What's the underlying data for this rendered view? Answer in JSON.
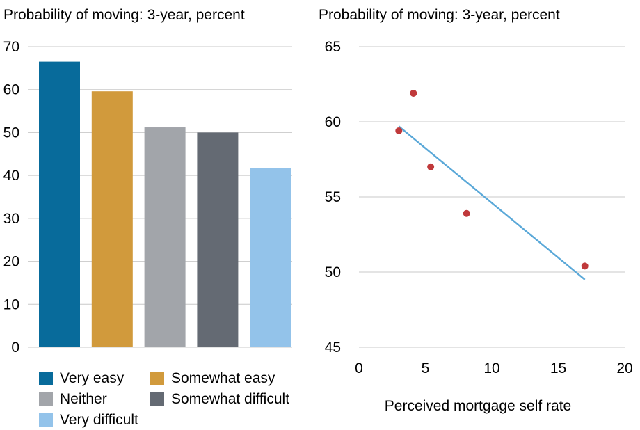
{
  "chart_data": [
    {
      "type": "bar",
      "title": "Probability of moving: 3-year, percent",
      "categories": [
        "Very easy",
        "Somewhat easy",
        "Neither",
        "Somewhat difficult",
        "Very difficult"
      ],
      "values": [
        66.5,
        59.6,
        51.2,
        50.0,
        41.8
      ],
      "colors": [
        "#086b9b",
        "#d19a3c",
        "#a2a5aa",
        "#646a73",
        "#93c3ea"
      ],
      "ylim": [
        0,
        70
      ],
      "yticks": [
        "0",
        "10",
        "20",
        "30",
        "40",
        "50",
        "60",
        "70"
      ],
      "grid": true,
      "legend_position": "bottom"
    },
    {
      "type": "scatter",
      "title": "Probability of moving: 3-year, percent",
      "xlabel": "Perceived mortgage self rate",
      "points": [
        {
          "x": 3.0,
          "y": 59.4
        },
        {
          "x": 4.1,
          "y": 61.9
        },
        {
          "x": 5.4,
          "y": 57.0
        },
        {
          "x": 8.1,
          "y": 53.9
        },
        {
          "x": 17.0,
          "y": 50.4
        }
      ],
      "trendline": {
        "x": [
          3.0,
          17.0
        ],
        "y": [
          59.7,
          49.5
        ]
      },
      "xlim": [
        0,
        20
      ],
      "ylim": [
        45,
        65
      ],
      "xticks": [
        "0",
        "5",
        "10",
        "15",
        "20"
      ],
      "yticks": [
        "45",
        "50",
        "55",
        "60",
        "65"
      ],
      "point_color": "#c0393b",
      "line_color": "#5aa8d8",
      "grid": true
    }
  ]
}
